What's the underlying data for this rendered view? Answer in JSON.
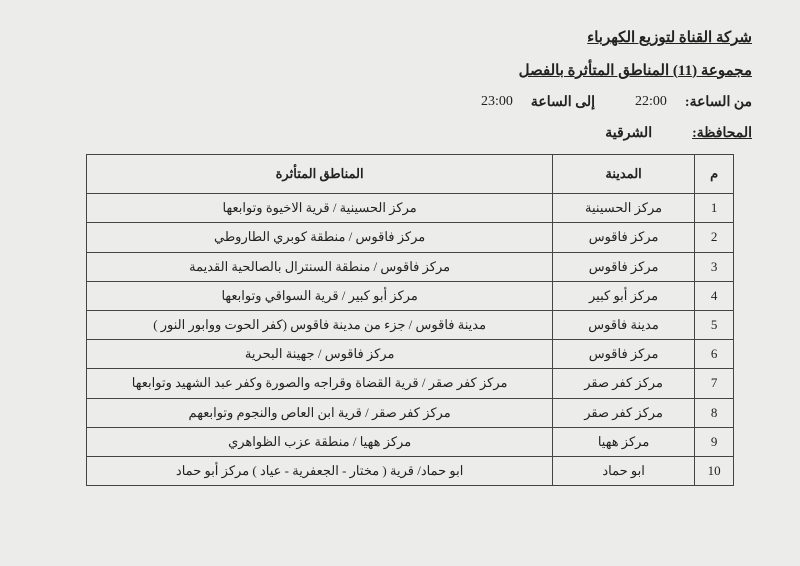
{
  "company": "شركة القناة لتوزيع الكهرباء",
  "group_title": "مجموعة (11) المناطق المتأثرة بالفصل",
  "time": {
    "from_label": "من الساعة:",
    "from_value": "22:00",
    "to_label": "إلى الساعة",
    "to_value": "23:00"
  },
  "governorate": {
    "label": "المحافظة:",
    "value": "الشرقية"
  },
  "table": {
    "headers": {
      "idx": "م",
      "city": "المدينة",
      "areas": "المناطق المتأثرة"
    },
    "rows": [
      {
        "idx": "1",
        "city": "مركز الحسينية",
        "areas": "مركز الحسينية / قرية الاخيوة وتوابعها"
      },
      {
        "idx": "2",
        "city": "مركز فاقوس",
        "areas": "مركز فاقوس / منطقة كوبري الطاروطي"
      },
      {
        "idx": "3",
        "city": "مركز فاقوس",
        "areas": "مركز فاقوس / منطقة السنترال بالصالحية القديمة"
      },
      {
        "idx": "4",
        "city": "مركز أبو كبير",
        "areas": "مركز أبو كبير / قرية السواقي وتوابعها"
      },
      {
        "idx": "5",
        "city": "مدينة فاقوس",
        "areas": "مدينة فاقوس / جزء من مدينة فاقوس (كفر الحوت ووابور النور )"
      },
      {
        "idx": "6",
        "city": "مركز فاقوس",
        "areas": "مركز فاقوس / جهينة البحرية"
      },
      {
        "idx": "7",
        "city": "مركز كفر صقر",
        "areas": "مركز كفر صقر / قرية القضاة وقراجه والصورة وكفر عبد الشهيد وتوابعها"
      },
      {
        "idx": "8",
        "city": "مركز كفر صقر",
        "areas": "مركز كفر صقر / قرية ابن العاص والنجوم وتوابعهم"
      },
      {
        "idx": "9",
        "city": "مركز ههيا",
        "areas": "مركز ههيا / منطقة عزب الظواهري"
      },
      {
        "idx": "10",
        "city": "ابو حماد",
        "areas": "ابو حماد/ قرية ( مختار - الجعفرية - عياد ) مركز أبو حماد"
      }
    ]
  },
  "style": {
    "background": "#ececea",
    "text_color": "#222",
    "border_color": "#444",
    "header_fontsize": 15,
    "body_fontsize": 13
  }
}
